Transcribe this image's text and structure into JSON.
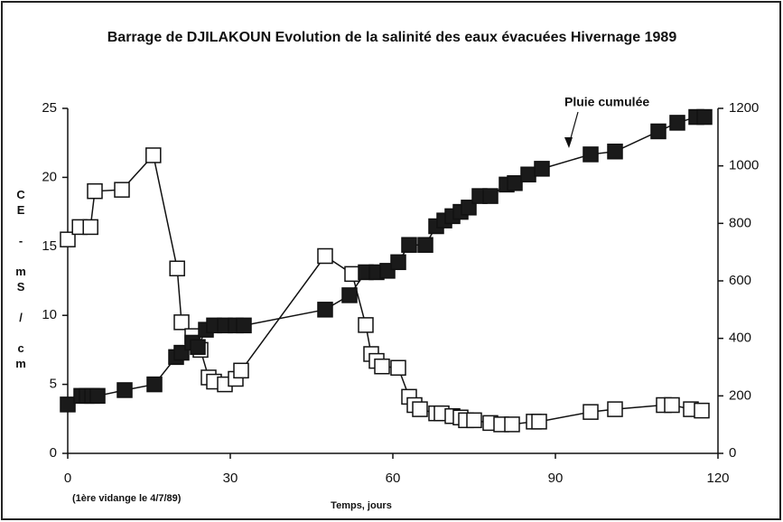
{
  "chart_data": {
    "type": "line",
    "title": "Barrage de DJILAKOUN  Evolution de la salinité des eaux évacuées Hivernage 1989",
    "y_label": "CE - mS / cm",
    "x_label": "Temps, jours",
    "note": "(1ère vidange le 4/7/89)",
    "annotation": "Pluie cumulée",
    "xlim": [
      0,
      120
    ],
    "xticks": [
      0,
      30,
      60,
      90,
      120
    ],
    "ylim": [
      0,
      25
    ],
    "yticks": [
      0,
      5,
      10,
      15,
      20,
      25
    ],
    "y2lim": [
      0,
      1200
    ],
    "y2ticks": [
      0,
      200,
      400,
      600,
      800,
      1000,
      1200
    ],
    "grid": false,
    "series": [
      {
        "name": "CE",
        "color": "#ffffff",
        "marker": "open",
        "x": [
          0,
          2.2,
          4.2,
          5,
          10,
          15.8,
          20.2,
          21,
          23,
          24.5,
          26,
          27,
          29,
          31,
          32,
          47.5,
          52.5,
          55,
          56,
          57,
          58,
          61,
          63,
          64,
          65,
          68,
          69,
          71,
          72.5,
          73.5,
          75,
          78,
          80,
          82,
          86,
          87,
          96.5,
          101,
          110,
          111.5,
          115,
          117
        ],
        "values": [
          15.5,
          16.4,
          16.4,
          19.0,
          19.1,
          21.6,
          13.4,
          9.5,
          8.5,
          7.5,
          5.5,
          5.2,
          5.0,
          5.4,
          6.0,
          14.3,
          13.0,
          9.3,
          7.2,
          6.7,
          6.3,
          6.2,
          4.1,
          3.5,
          3.2,
          2.9,
          2.9,
          2.7,
          2.6,
          2.4,
          2.4,
          2.2,
          2.1,
          2.1,
          2.3,
          2.3,
          3.0,
          3.2,
          3.5,
          3.5,
          3.2,
          3.1
        ]
      },
      {
        "name": "Pluie cumulée",
        "color": "#1a1a1a",
        "marker": "filled",
        "axis": "y2",
        "x": [
          0,
          2.5,
          3.5,
          4.5,
          5.5,
          10.5,
          16,
          20,
          21,
          23,
          24,
          25.5,
          27,
          29,
          31,
          32.5,
          47.5,
          52,
          55,
          57,
          59,
          61,
          63,
          66,
          68,
          69.5,
          71,
          72.5,
          74,
          76,
          78,
          81,
          82.5,
          85,
          87.5,
          96.5,
          101,
          109,
          112.5,
          116,
          117.5
        ],
        "values": [
          170,
          200,
          200,
          200,
          200,
          220,
          240,
          335,
          350,
          385,
          370,
          430,
          445,
          445,
          445,
          445,
          500,
          550,
          630,
          630,
          635,
          665,
          725,
          725,
          790,
          810,
          825,
          840,
          855,
          895,
          895,
          935,
          940,
          970,
          990,
          1040,
          1050,
          1120,
          1150,
          1170,
          1170
        ]
      }
    ]
  }
}
